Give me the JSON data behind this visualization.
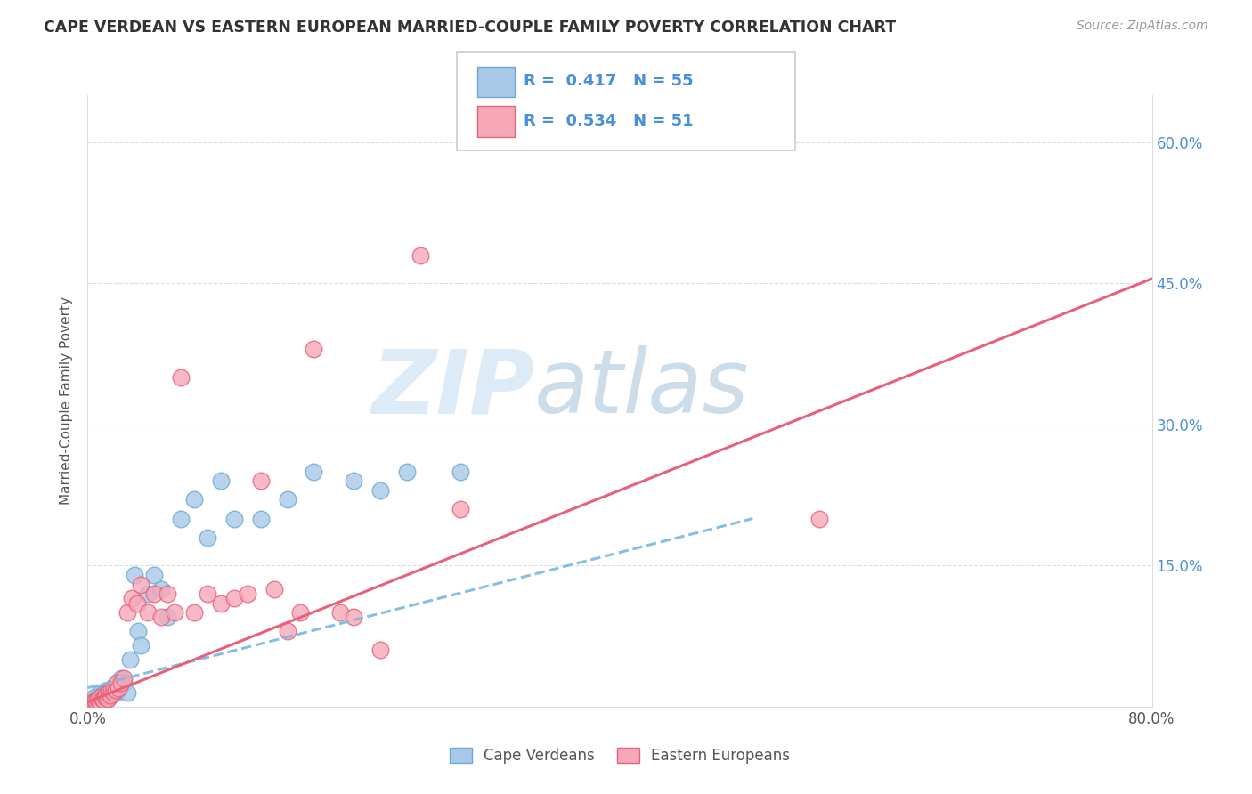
{
  "title": "CAPE VERDEAN VS EASTERN EUROPEAN MARRIED-COUPLE FAMILY POVERTY CORRELATION CHART",
  "source": "Source: ZipAtlas.com",
  "ylabel": "Married-Couple Family Poverty",
  "xlim": [
    0,
    0.8
  ],
  "ylim": [
    0,
    0.65
  ],
  "xticks": [
    0.0,
    0.2,
    0.4,
    0.6,
    0.8
  ],
  "xticklabels": [
    "0.0%",
    "",
    "",
    "",
    "80.0%"
  ],
  "yticks": [
    0.0,
    0.15,
    0.3,
    0.45,
    0.6
  ],
  "ytick_right_labels": [
    "",
    "15.0%",
    "30.0%",
    "45.0%",
    "60.0%"
  ],
  "blue_color": "#a8c8e8",
  "pink_color": "#f5a8b8",
  "blue_edge_color": "#6aaad4",
  "pink_edge_color": "#e8607a",
  "blue_line_color": "#7ab8e0",
  "pink_line_color": "#e8607a",
  "R_blue": 0.417,
  "N_blue": 55,
  "R_pink": 0.534,
  "N_pink": 51,
  "legend_label_blue": "Cape Verdeans",
  "legend_label_pink": "Eastern Europeans",
  "watermark_zip": "ZIP",
  "watermark_atlas": "atlas",
  "blue_scatter_x": [
    0.002,
    0.003,
    0.004,
    0.005,
    0.005,
    0.006,
    0.007,
    0.007,
    0.008,
    0.008,
    0.009,
    0.009,
    0.01,
    0.01,
    0.01,
    0.011,
    0.011,
    0.012,
    0.012,
    0.013,
    0.013,
    0.014,
    0.015,
    0.015,
    0.016,
    0.017,
    0.018,
    0.019,
    0.02,
    0.021,
    0.022,
    0.023,
    0.025,
    0.027,
    0.03,
    0.032,
    0.035,
    0.038,
    0.04,
    0.045,
    0.05,
    0.055,
    0.06,
    0.07,
    0.08,
    0.09,
    0.1,
    0.11,
    0.13,
    0.15,
    0.17,
    0.2,
    0.22,
    0.24,
    0.28
  ],
  "blue_scatter_y": [
    0.003,
    0.005,
    0.003,
    0.007,
    0.01,
    0.005,
    0.004,
    0.008,
    0.006,
    0.01,
    0.004,
    0.008,
    0.005,
    0.01,
    0.015,
    0.006,
    0.012,
    0.008,
    0.014,
    0.007,
    0.015,
    0.01,
    0.008,
    0.016,
    0.01,
    0.018,
    0.012,
    0.02,
    0.022,
    0.015,
    0.025,
    0.018,
    0.03,
    0.025,
    0.015,
    0.05,
    0.14,
    0.08,
    0.065,
    0.12,
    0.14,
    0.125,
    0.095,
    0.2,
    0.22,
    0.18,
    0.24,
    0.2,
    0.2,
    0.22,
    0.25,
    0.24,
    0.23,
    0.25,
    0.25
  ],
  "pink_scatter_x": [
    0.002,
    0.003,
    0.004,
    0.005,
    0.006,
    0.007,
    0.008,
    0.009,
    0.01,
    0.01,
    0.011,
    0.012,
    0.013,
    0.014,
    0.015,
    0.016,
    0.017,
    0.018,
    0.019,
    0.02,
    0.021,
    0.022,
    0.023,
    0.025,
    0.027,
    0.03,
    0.033,
    0.037,
    0.04,
    0.045,
    0.05,
    0.055,
    0.06,
    0.065,
    0.07,
    0.08,
    0.09,
    0.1,
    0.11,
    0.12,
    0.13,
    0.14,
    0.15,
    0.16,
    0.17,
    0.19,
    0.2,
    0.22,
    0.25,
    0.28,
    0.55
  ],
  "pink_scatter_y": [
    0.003,
    0.004,
    0.005,
    0.004,
    0.006,
    0.005,
    0.007,
    0.006,
    0.005,
    0.01,
    0.008,
    0.007,
    0.01,
    0.012,
    0.008,
    0.015,
    0.012,
    0.018,
    0.015,
    0.02,
    0.018,
    0.025,
    0.02,
    0.025,
    0.03,
    0.1,
    0.115,
    0.11,
    0.13,
    0.1,
    0.12,
    0.095,
    0.12,
    0.1,
    0.35,
    0.1,
    0.12,
    0.11,
    0.115,
    0.12,
    0.24,
    0.125,
    0.08,
    0.1,
    0.38,
    0.1,
    0.095,
    0.06,
    0.48,
    0.21,
    0.2
  ],
  "blue_trend_x": [
    0.0,
    0.5
  ],
  "blue_trend_y": [
    0.02,
    0.2
  ],
  "pink_trend_x": [
    0.0,
    0.8
  ],
  "pink_trend_y": [
    0.005,
    0.455
  ]
}
